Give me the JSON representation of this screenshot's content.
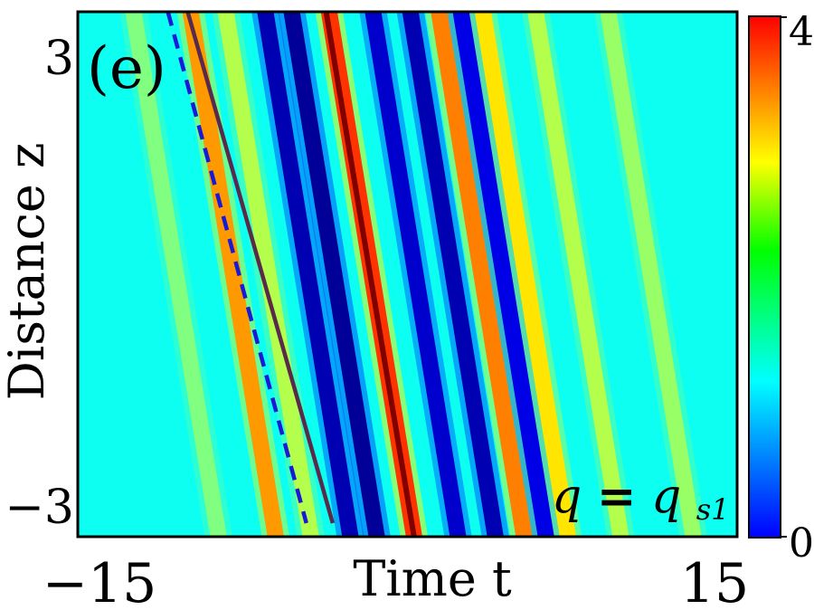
{
  "chart_data": {
    "type": "heatmap",
    "panel_label": "(e)",
    "xlabel": "Time t",
    "ylabel": "Distance z",
    "xlim": [
      -15,
      15
    ],
    "ylim": [
      -3.5,
      3.5
    ],
    "x_tick_labels": [
      {
        "value": -15,
        "text": "−15"
      },
      {
        "value": 15,
        "text": "15"
      }
    ],
    "y_tick_labels": [
      {
        "value": 3,
        "text": "3"
      },
      {
        "value": -3,
        "text": "−3"
      }
    ],
    "colorbar": {
      "range": [
        0,
        4
      ],
      "tick_labels": [
        {
          "value": 0,
          "text": "0"
        },
        {
          "value": 4,
          "text": "4"
        }
      ],
      "colormap": "jet"
    },
    "annotation": {
      "q": "q",
      "eq": "=",
      "qs": "q",
      "sub": "s1"
    },
    "background_intensity": 1.55,
    "stripes": [
      {
        "t_at_z_top": -12.6,
        "t_at_z_bottom": -8.6,
        "intensity": 2.0
      },
      {
        "t_at_z_top": -10.0,
        "t_at_z_bottom": -6.0,
        "intensity": 2.9
      },
      {
        "t_at_z_top": -8.4,
        "t_at_z_bottom": -4.4,
        "intensity": 2.2
      },
      {
        "t_at_z_top": -6.6,
        "t_at_z_bottom": -2.6,
        "intensity": 0.2
      },
      {
        "t_at_z_top": -5.4,
        "t_at_z_bottom": -1.4,
        "intensity": 0.1
      },
      {
        "t_at_z_top": -3.7,
        "t_at_z_bottom": 0.3,
        "intensity": 3.3
      },
      {
        "t_at_z_top": -1.7,
        "t_at_z_bottom": 2.3,
        "intensity": 0.3
      },
      {
        "t_at_z_top": 0.0,
        "t_at_z_bottom": 4.0,
        "intensity": 0.2
      },
      {
        "t_at_z_top": 1.3,
        "t_at_z_bottom": 5.3,
        "intensity": 3.0
      },
      {
        "t_at_z_top": 2.3,
        "t_at_z_bottom": 6.3,
        "intensity": 0.4
      },
      {
        "t_at_z_top": 3.3,
        "t_at_z_bottom": 7.3,
        "intensity": 2.6
      },
      {
        "t_at_z_top": 5.7,
        "t_at_z_bottom": 9.7,
        "intensity": 2.2
      },
      {
        "t_at_z_top": 9.0,
        "t_at_z_bottom": 13.0,
        "intensity": 2.1
      }
    ],
    "peak_line": {
      "t_at_z_top": -3.7,
      "t_at_z_bottom": 0.3,
      "intensity": 4.0
    },
    "lines": [
      {
        "style": "dashed",
        "color": "#1a1ad6",
        "t_at_z_top": -10.9,
        "t_at_z_bottom": -4.6
      },
      {
        "style": "solid",
        "color": "#5a2a4a",
        "t_at_z_top": -10.0,
        "t_at_z_bottom": -3.4
      }
    ]
  }
}
